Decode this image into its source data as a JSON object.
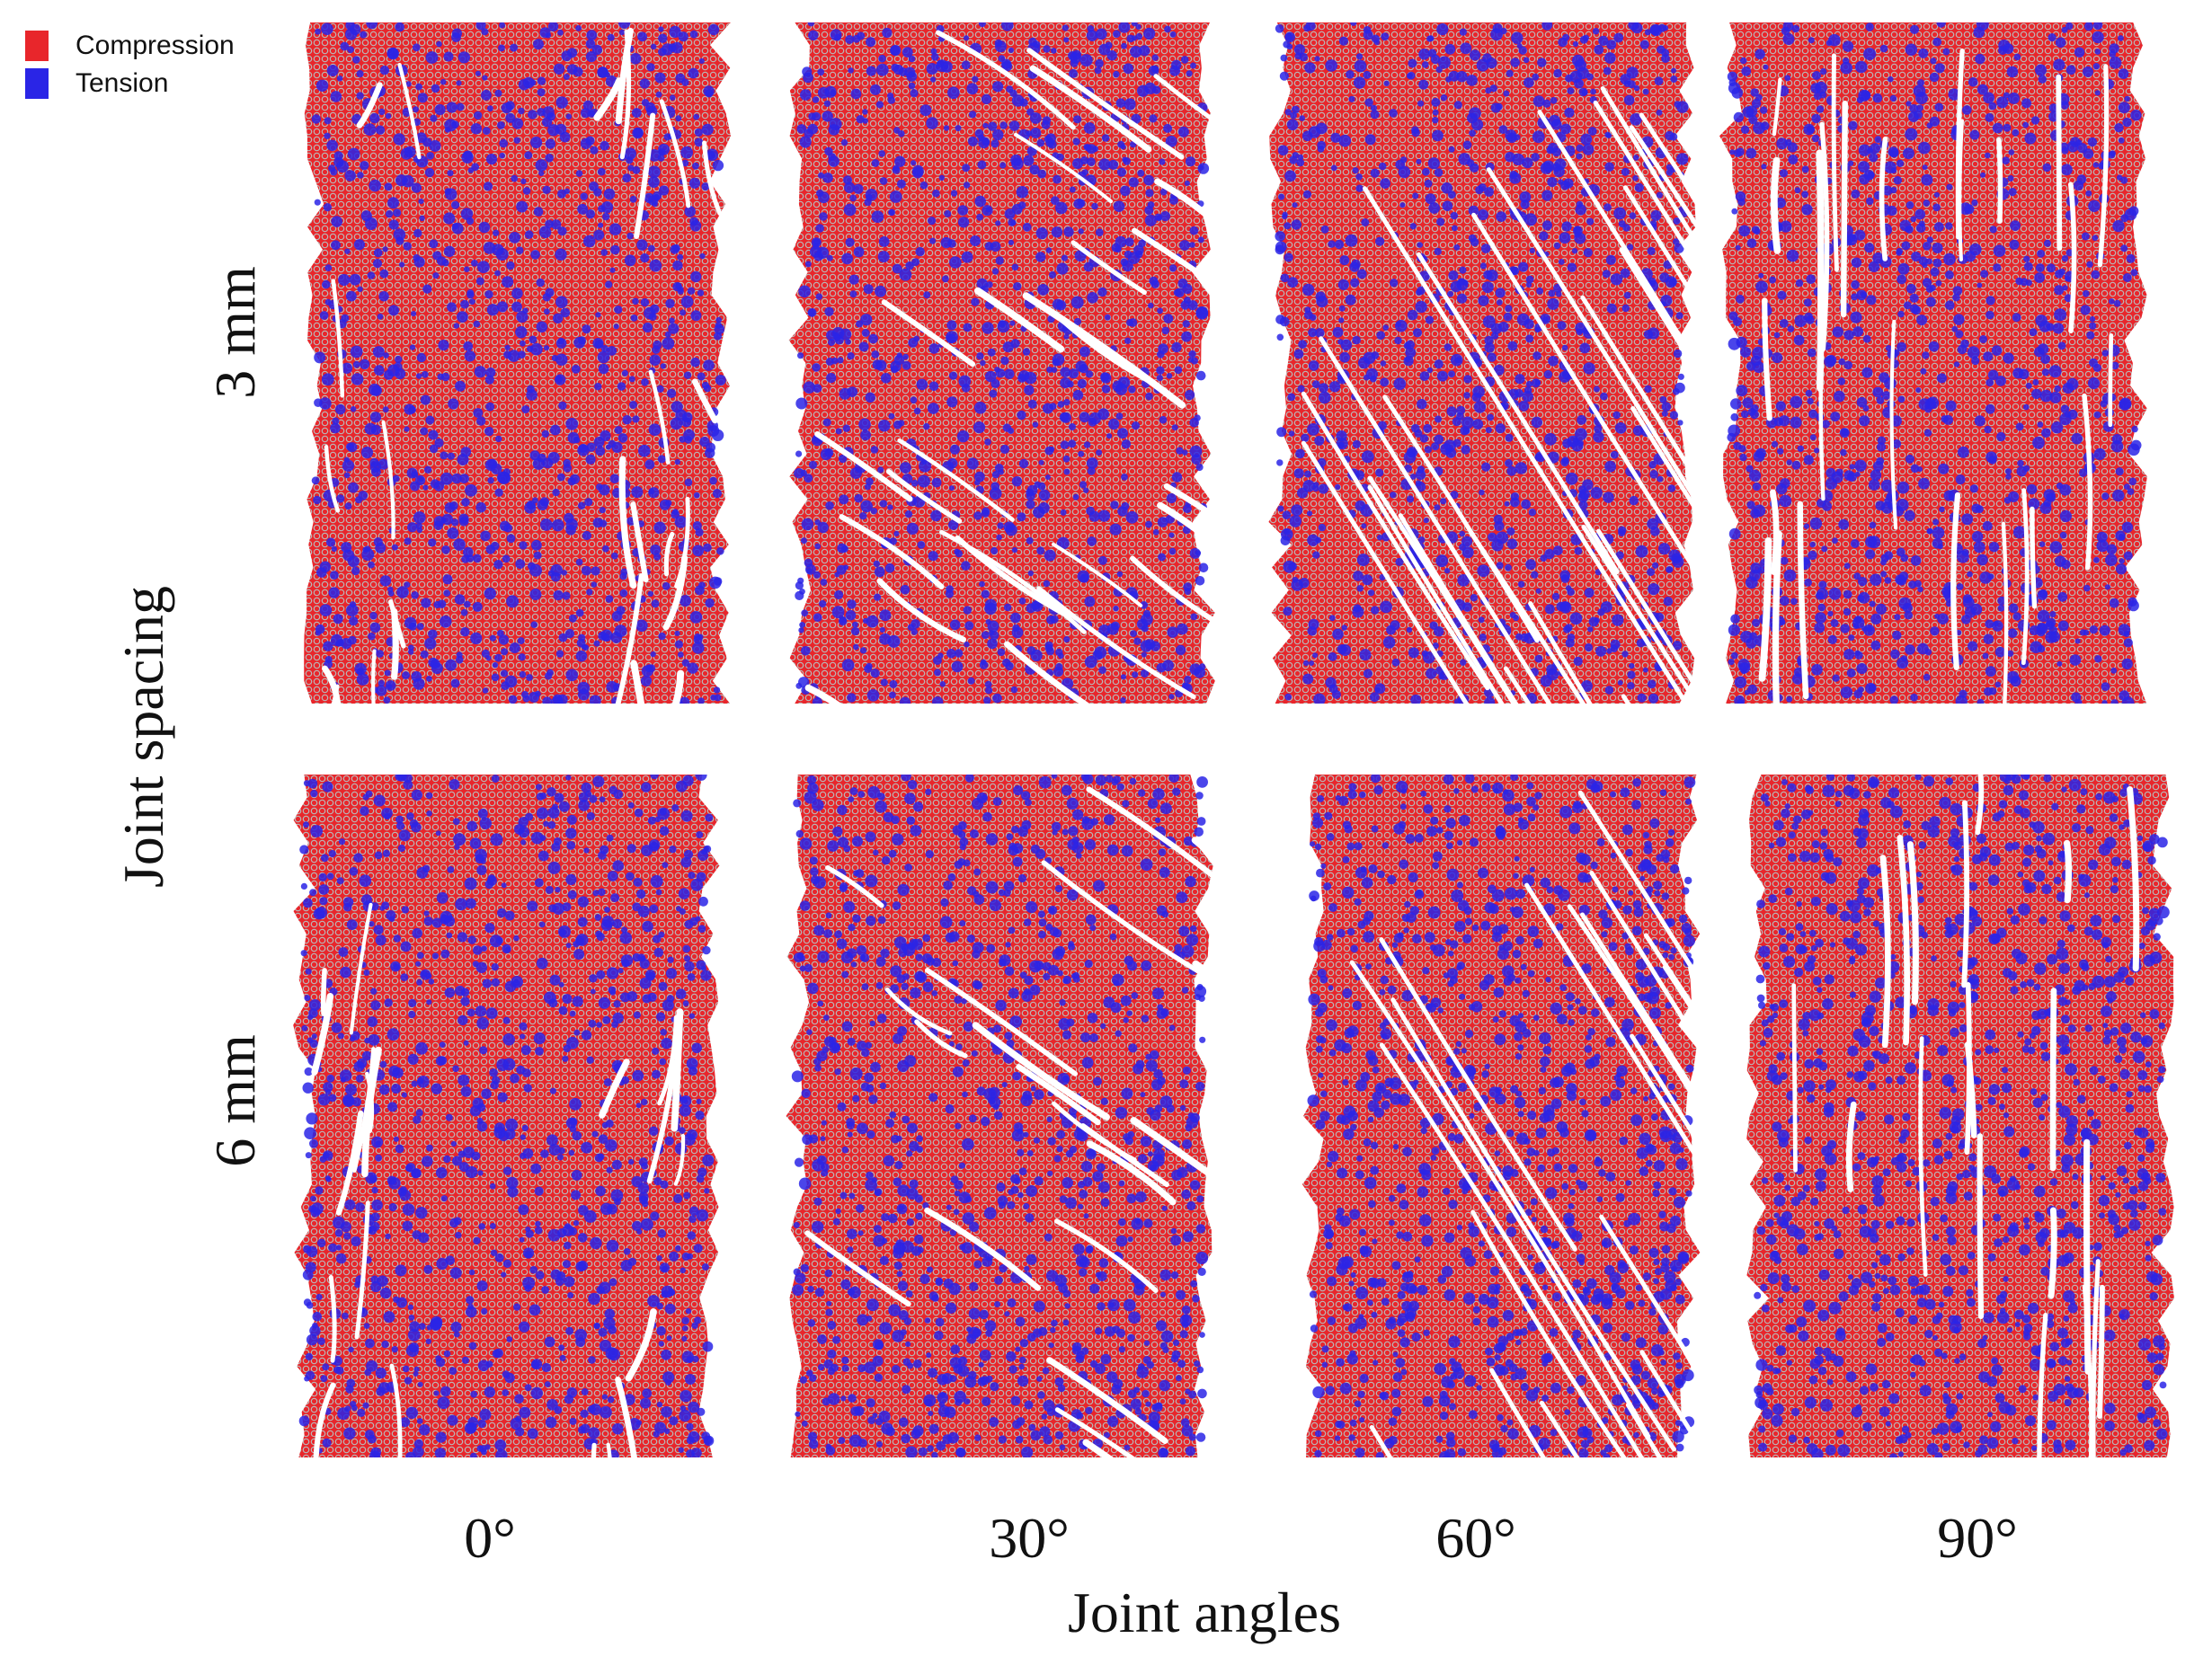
{
  "legend": {
    "compression_label": "Compression",
    "tension_label": "Tension",
    "compression_color": "#e8262b",
    "tension_color": "#2a25e6"
  },
  "y_title": "Joint spacing",
  "x_title": "Joint angles",
  "rows": [
    "3 mm",
    "6 mm"
  ],
  "columns": [
    "0°",
    "30°",
    "60°",
    "90°"
  ],
  "crack_color": "#ffffff",
  "particle_outline_color": "#b9b9b9",
  "panels": [
    {
      "spacing": "3 mm",
      "angle_deg": 0
    },
    {
      "spacing": "3 mm",
      "angle_deg": 30
    },
    {
      "spacing": "3 mm",
      "angle_deg": 60
    },
    {
      "spacing": "3 mm",
      "angle_deg": 90
    },
    {
      "spacing": "6 mm",
      "angle_deg": 0
    },
    {
      "spacing": "6 mm",
      "angle_deg": 30
    },
    {
      "spacing": "6 mm",
      "angle_deg": 60
    },
    {
      "spacing": "6 mm",
      "angle_deg": 90
    }
  ]
}
